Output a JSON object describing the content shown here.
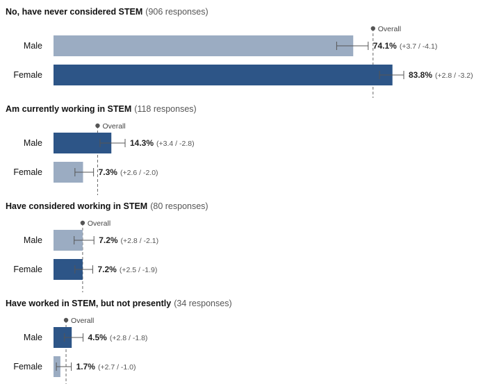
{
  "chart_data": [
    {
      "type": "bar",
      "orientation": "horizontal",
      "title": "No, have never considered STEM",
      "responses_text": "(906 responses)",
      "categories": [
        "Male",
        "Female"
      ],
      "values": [
        74.1,
        83.8
      ],
      "value_labels": [
        "74.1%",
        "83.8%"
      ],
      "ci_labels": [
        "(+3.7 / -4.1)",
        "(+2.8 / -3.2)"
      ],
      "ci_plus": [
        3.7,
        2.8
      ],
      "ci_minus": [
        4.1,
        3.2
      ],
      "overall_label": "Overall",
      "overall_value": 79.0,
      "bar_colors": [
        "#9bacc2",
        "#2d5587"
      ]
    },
    {
      "type": "bar",
      "orientation": "horizontal",
      "title": "Am currently working in STEM",
      "responses_text": "(118 responses)",
      "categories": [
        "Male",
        "Female"
      ],
      "values": [
        14.3,
        7.3
      ],
      "value_labels": [
        "14.3%",
        "7.3%"
      ],
      "ci_labels": [
        "(+3.4 / -2.8)",
        "(+2.6 / -2.0)"
      ],
      "ci_plus": [
        3.4,
        2.6
      ],
      "ci_minus": [
        2.8,
        2.0
      ],
      "overall_label": "Overall",
      "overall_value": 10.9,
      "bar_colors": [
        "#2d5587",
        "#9bacc2"
      ]
    },
    {
      "type": "bar",
      "orientation": "horizontal",
      "title": "Have considered working in STEM",
      "responses_text": "(80 responses)",
      "categories": [
        "Male",
        "Female"
      ],
      "values": [
        7.2,
        7.2
      ],
      "value_labels": [
        "7.2%",
        "7.2%"
      ],
      "ci_labels": [
        "(+2.8 / -2.1)",
        "(+2.5 / -1.9)"
      ],
      "ci_plus": [
        2.8,
        2.5
      ],
      "ci_minus": [
        2.1,
        1.9
      ],
      "overall_label": "Overall",
      "overall_value": 7.2,
      "bar_colors": [
        "#9bacc2",
        "#2d5587"
      ]
    },
    {
      "type": "bar",
      "orientation": "horizontal",
      "title": "Have worked in STEM, but not presently",
      "responses_text": "(34 responses)",
      "categories": [
        "Male",
        "Female"
      ],
      "values": [
        4.5,
        1.7
      ],
      "value_labels": [
        "4.5%",
        "1.7%"
      ],
      "ci_labels": [
        "(+2.8 / -1.8)",
        "(+2.7 / -1.0)"
      ],
      "ci_plus": [
        2.8,
        2.7
      ],
      "ci_minus": [
        1.8,
        1.0
      ],
      "overall_label": "Overall",
      "overall_value": 3.1,
      "bar_colors": [
        "#2d5587",
        "#9bacc2"
      ]
    }
  ]
}
